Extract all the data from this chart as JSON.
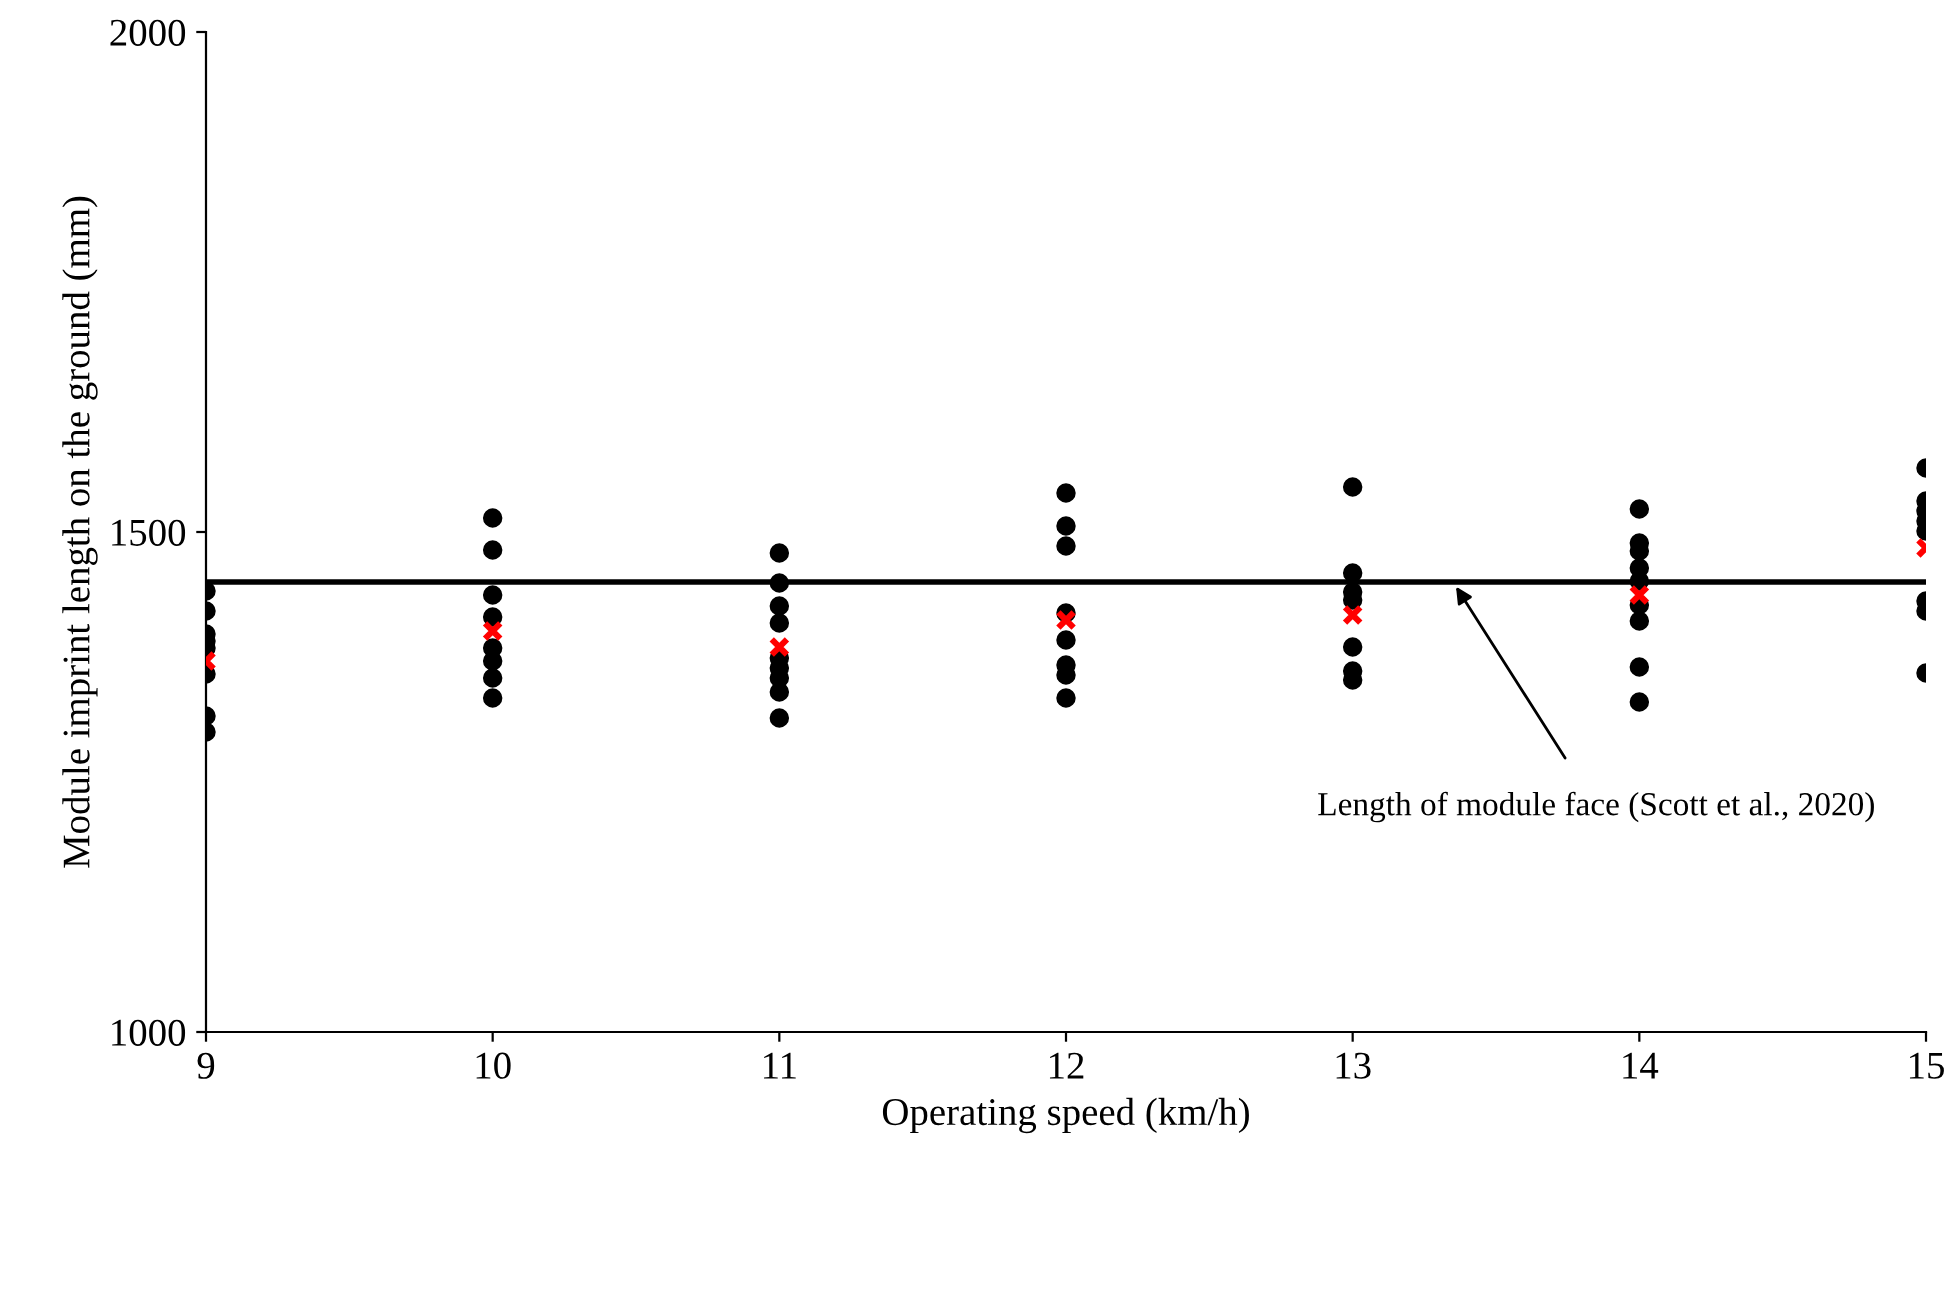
{
  "chart_data": {
    "type": "scatter",
    "xlabel": "Operating speed (km/h)",
    "ylabel": "Module imprint length on the ground (mm)",
    "xlim": [
      9,
      15
    ],
    "xticks": [
      9,
      10,
      11,
      12,
      13,
      14,
      15
    ],
    "ylim": [
      1000,
      2000
    ],
    "yticks": [
      1000,
      1500,
      2000
    ],
    "grid": false,
    "legend": false,
    "series": [
      {
        "color": "#000000",
        "marker": "circle",
        "x": [
          9,
          9,
          9,
          9,
          9,
          9,
          9,
          9,
          10,
          10,
          10,
          10,
          10,
          10,
          10,
          10,
          11,
          11,
          11,
          11,
          11,
          11,
          11,
          11,
          11,
          12,
          12,
          12,
          12,
          12,
          12,
          12,
          12,
          13,
          13,
          13,
          13,
          13,
          13,
          13,
          14,
          14,
          14,
          14,
          14,
          14,
          14,
          14,
          14,
          15,
          15,
          15,
          15,
          15,
          15,
          15,
          15
        ],
        "values": [
          1441,
          1421,
          1398,
          1391,
          1384,
          1358,
          1316,
          1300,
          1514,
          1482,
          1437,
          1415,
          1384,
          1371,
          1354,
          1334,
          1479,
          1449,
          1426,
          1409,
          1374,
          1364,
          1354,
          1340,
          1314,
          1539,
          1506,
          1486,
          1419,
          1392,
          1367,
          1357,
          1334,
          1545,
          1459,
          1440,
          1432,
          1385,
          1361,
          1352,
          1523,
          1489,
          1481,
          1464,
          1451,
          1427,
          1411,
          1365,
          1330,
          1564,
          1531,
          1521,
          1511,
          1501,
          1431,
          1421,
          1359
        ]
      },
      {
        "color": "#ff0000",
        "marker": "cross",
        "x": [
          9,
          10,
          11,
          12,
          13,
          14,
          15
        ],
        "values": [
          1371,
          1401,
          1385,
          1412,
          1417,
          1437,
          1484
        ]
      }
    ],
    "ref_lines": [
      {
        "axis": "y",
        "value": 1450,
        "color": "#000000",
        "line_style": "solid"
      }
    ],
    "annotations": [
      {
        "text": "Length of module face (Scott et al., 2020)",
        "x": 13.35,
        "y": 1450
      }
    ]
  }
}
